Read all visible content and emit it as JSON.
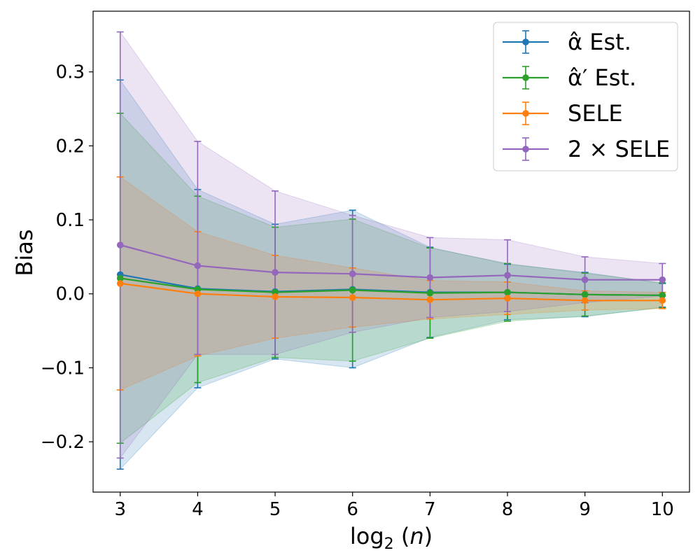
{
  "chart_data": {
    "type": "line",
    "title": "",
    "xlabel": "log₂(n)",
    "ylabel": "Bias",
    "x": [
      3,
      4,
      5,
      6,
      7,
      8,
      9,
      10
    ],
    "xlim": [
      2.65,
      10.35
    ],
    "ylim": [
      -0.268,
      0.382
    ],
    "xticks": [
      3,
      4,
      5,
      6,
      7,
      8,
      9,
      10
    ],
    "xtick_labels": [
      "3",
      "4",
      "5",
      "6",
      "7",
      "8",
      "9",
      "10"
    ],
    "yticks": [
      -0.2,
      -0.1,
      0.0,
      0.1,
      0.2,
      0.3
    ],
    "ytick_labels": [
      "−0.2",
      "−0.1",
      "0.0",
      "0.1",
      "0.2",
      "0.3"
    ],
    "grid": false,
    "legend_position": "top-right",
    "series": [
      {
        "name": "α̂ Est.",
        "color": "#1f77b4",
        "values": [
          0.026,
          0.007,
          0.003,
          0.006,
          0.002,
          0.002,
          -0.001,
          -0.002
        ],
        "lower": [
          -0.237,
          -0.127,
          -0.088,
          -0.1,
          -0.059,
          -0.035,
          -0.031,
          -0.018
        ],
        "upper": [
          0.289,
          0.141,
          0.094,
          0.113,
          0.063,
          0.04,
          0.029,
          0.014
        ]
      },
      {
        "name": "α̂′ Est.",
        "color": "#2ca02c",
        "values": [
          0.021,
          0.006,
          0.002,
          0.005,
          0.001,
          0.002,
          -0.001,
          -0.002
        ],
        "lower": [
          -0.202,
          -0.12,
          -0.086,
          -0.091,
          -0.06,
          -0.037,
          -0.03,
          -0.019
        ],
        "upper": [
          0.244,
          0.132,
          0.09,
          0.101,
          0.062,
          0.041,
          0.028,
          0.015
        ]
      },
      {
        "name": "SELE",
        "color": "#ff7f0e",
        "values": [
          0.014,
          0.0,
          -0.004,
          -0.005,
          -0.008,
          -0.006,
          -0.009,
          -0.009
        ],
        "lower": [
          -0.13,
          -0.084,
          -0.06,
          -0.045,
          -0.034,
          -0.028,
          -0.022,
          -0.02
        ],
        "upper": [
          0.158,
          0.084,
          0.052,
          0.035,
          0.018,
          0.016,
          0.004,
          0.002
        ]
      },
      {
        "name": "2 × SELE",
        "color": "#9467bd",
        "values": [
          0.066,
          0.038,
          0.029,
          0.027,
          0.022,
          0.025,
          0.019,
          0.019
        ],
        "lower": [
          -0.222,
          -0.082,
          -0.082,
          -0.052,
          -0.032,
          -0.024,
          -0.012,
          -0.003
        ],
        "upper": [
          0.354,
          0.206,
          0.139,
          0.106,
          0.076,
          0.073,
          0.05,
          0.041
        ]
      }
    ]
  }
}
